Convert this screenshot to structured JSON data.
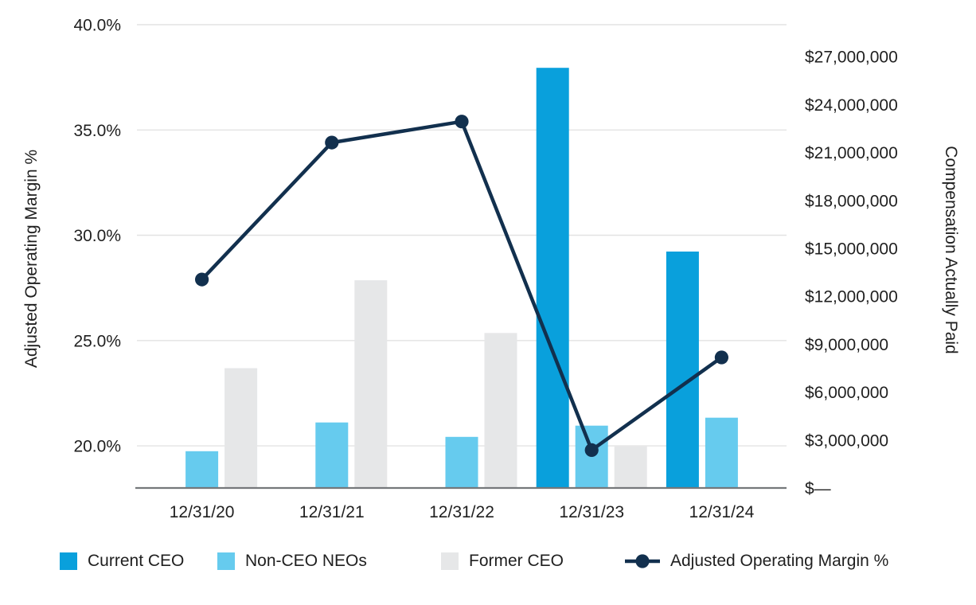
{
  "chart_data": {
    "type": "combo-bar-line",
    "title": "",
    "categories": [
      "12/31/20",
      "12/31/21",
      "12/31/22",
      "12/31/23",
      "12/31/24"
    ],
    "bar_series": [
      {
        "name": "Current CEO",
        "color": "#09a0dc",
        "values": [
          null,
          null,
          null,
          26300000,
          14800000
        ]
      },
      {
        "name": "Non-CEO NEOs",
        "color": "#66cbee",
        "values": [
          2300000,
          4100000,
          3200000,
          3900000,
          4400000
        ]
      },
      {
        "name": "Former CEO",
        "color": "#e6e7e8",
        "values": [
          7500000,
          13000000,
          9700000,
          2600000,
          null
        ]
      }
    ],
    "line_series": {
      "name": "Adjusted Operating Margin %",
      "color": "#12304e",
      "axis": "left",
      "values": [
        27.9,
        34.4,
        35.4,
        19.8,
        24.2
      ]
    },
    "ylabel_left": "Adjusted Operating Margin %",
    "ylabel_right": "Compensation Actually Paid",
    "left_ticks": [
      {
        "value": 40,
        "label": "40.0%"
      },
      {
        "value": 35,
        "label": "35.0%"
      },
      {
        "value": 30,
        "label": "30.0%"
      },
      {
        "value": 25,
        "label": "25.0%"
      },
      {
        "value": 20,
        "label": "20.0%"
      }
    ],
    "right_ticks": [
      {
        "value": 27000000,
        "label": "$27,000,000"
      },
      {
        "value": 24000000,
        "label": "$24,000,000"
      },
      {
        "value": 21000000,
        "label": "$21,000,000"
      },
      {
        "value": 18000000,
        "label": "$18,000,000"
      },
      {
        "value": 15000000,
        "label": "$15,000,000"
      },
      {
        "value": 12000000,
        "label": "$12,000,000"
      },
      {
        "value": 9000000,
        "label": "$9,000,000"
      },
      {
        "value": 6000000,
        "label": "$6,000,000"
      },
      {
        "value": 3000000,
        "label": "$3,000,000"
      },
      {
        "value": 0,
        "label": "$—"
      }
    ],
    "ylim_left": [
      18,
      40
    ],
    "ylim_right": [
      0,
      29000000
    ],
    "grid": "horizontal-only",
    "legend_position": "bottom",
    "colors": {
      "gridline": "#e3e3e3",
      "axis_line": "#75787b",
      "text": "#1f1f1f",
      "background": "#ffffff"
    }
  }
}
